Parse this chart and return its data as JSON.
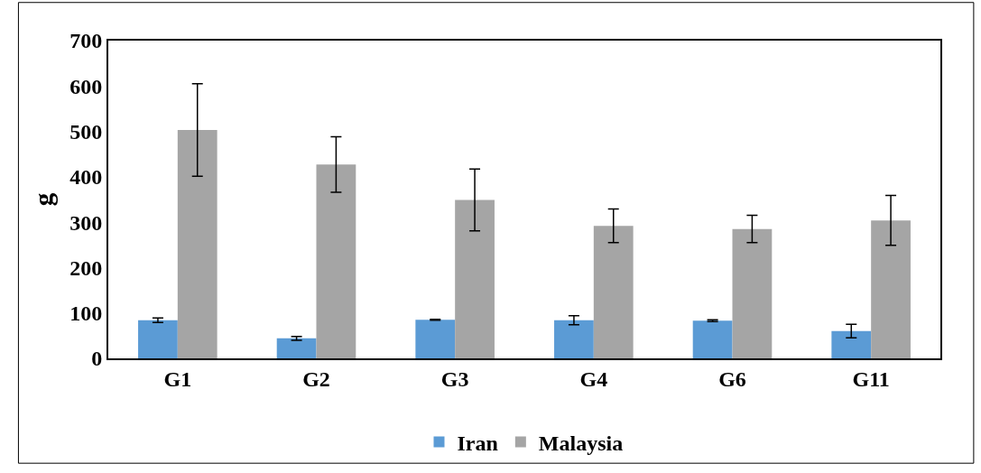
{
  "chart_data": {
    "type": "bar",
    "ylabel": "g",
    "categories": [
      "G1",
      "G2",
      "G3",
      "G4",
      "G6",
      "G11"
    ],
    "series": [
      {
        "name": "Iran",
        "color": "#5b9bd5",
        "values": [
          84,
          44,
          85,
          84,
          83,
          60
        ],
        "errors": [
          5,
          4,
          1,
          10,
          2,
          15
        ]
      },
      {
        "name": "Malaysia",
        "color": "#a5a5a5",
        "values": [
          503,
          427,
          349,
          292,
          285,
          304
        ],
        "errors": [
          102,
          61,
          68,
          37,
          30,
          55
        ]
      }
    ],
    "ylim": [
      0,
      700
    ],
    "yticks": [
      0,
      100,
      200,
      300,
      400,
      500,
      600,
      700
    ],
    "legend": "bottom"
  }
}
